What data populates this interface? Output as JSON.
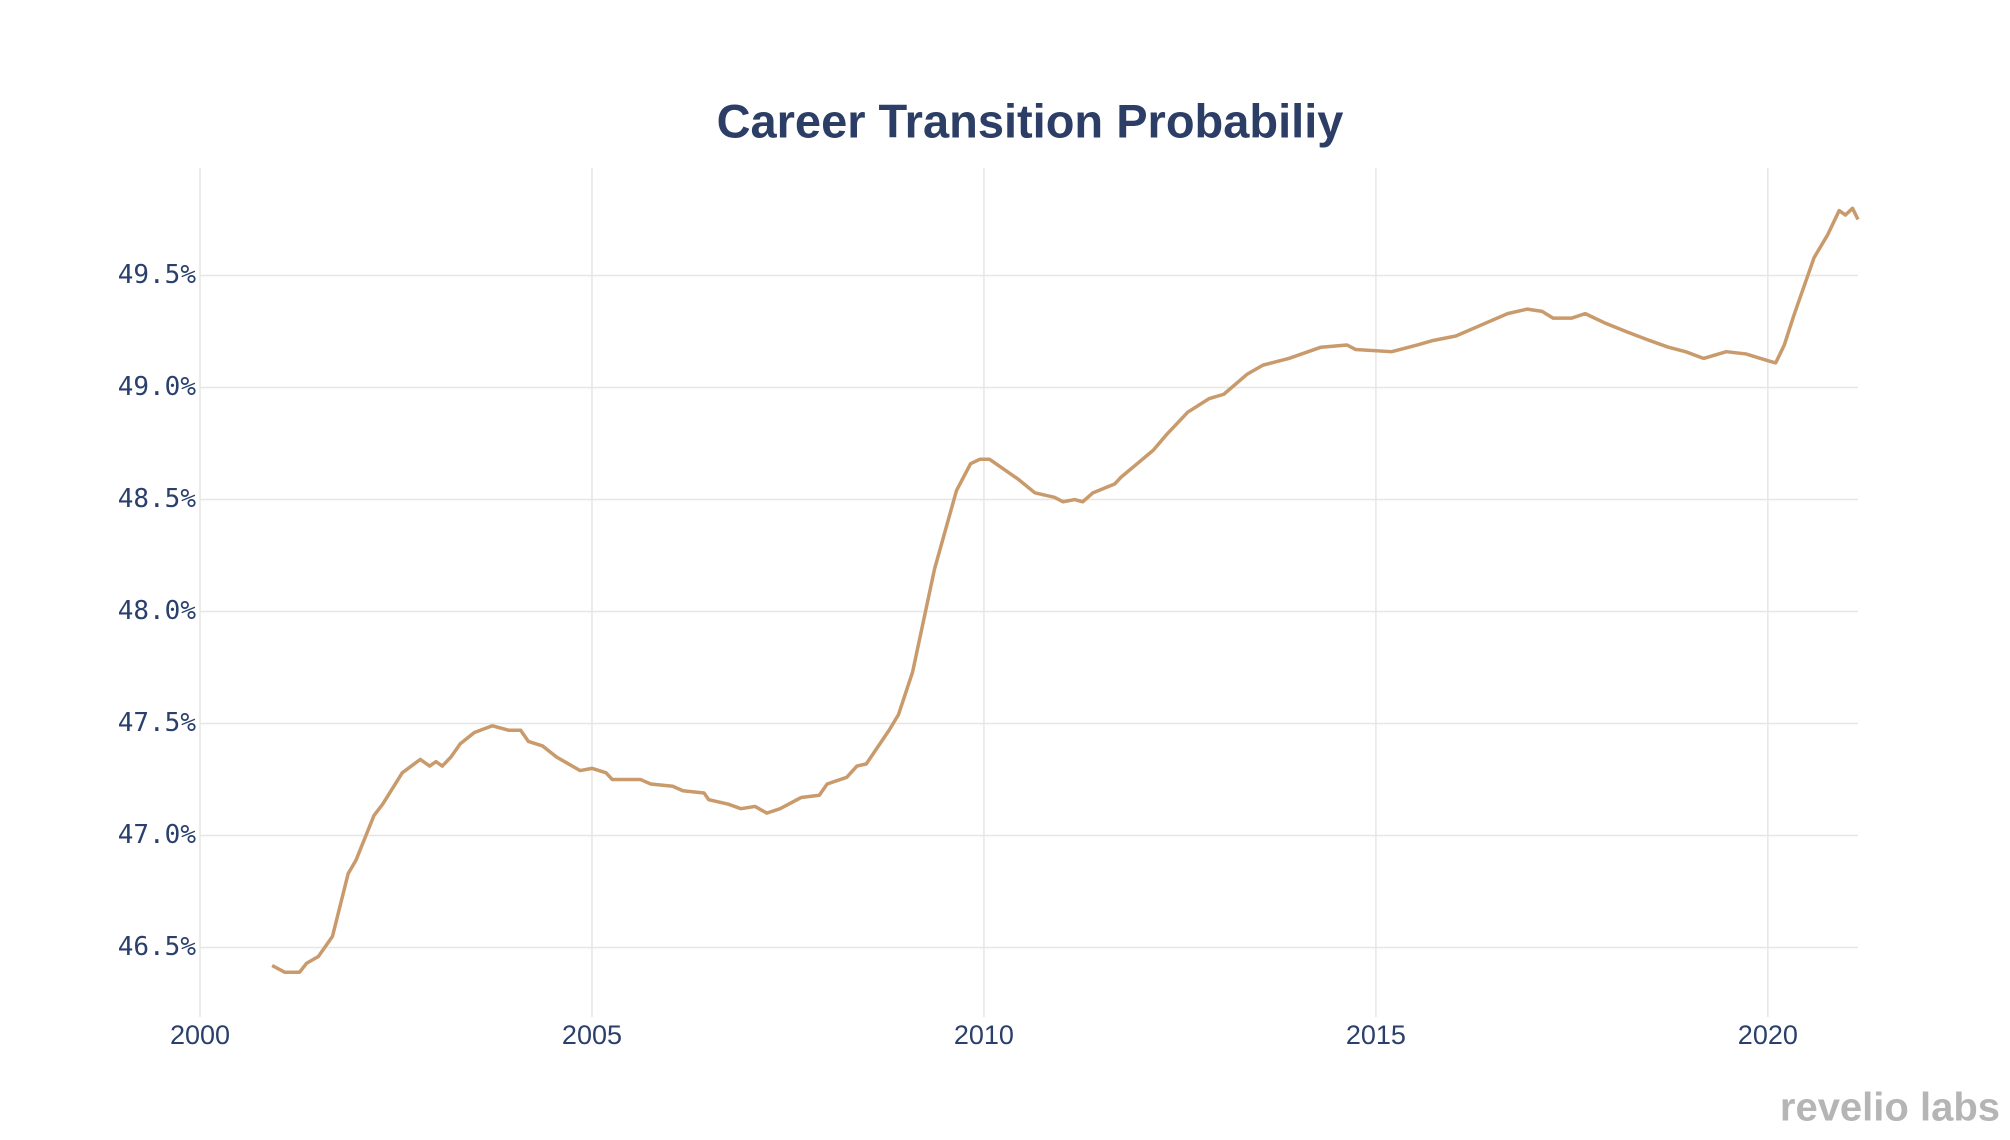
{
  "chart_data": {
    "type": "line",
    "title": "Career Transition Probabiliy",
    "logo": "revelio labs",
    "x": [
      2000.92,
      2001.08,
      2001.27,
      2001.36,
      2001.51,
      2001.69,
      2001.89,
      2001.99,
      2002.22,
      2002.33,
      2002.58,
      2002.81,
      2002.93,
      2003.01,
      2003.09,
      2003.2,
      2003.32,
      2003.5,
      2003.73,
      2003.94,
      2004.09,
      2004.19,
      2004.37,
      2004.55,
      2004.85,
      2005.0,
      2005.18,
      2005.26,
      2005.62,
      2005.75,
      2006.03,
      2006.16,
      2006.43,
      2006.49,
      2006.74,
      2006.9,
      2007.08,
      2007.23,
      2007.4,
      2007.67,
      2007.9,
      2008.0,
      2008.25,
      2008.38,
      2008.5,
      2008.79,
      2008.91,
      2009.09,
      2009.37,
      2009.65,
      2009.83,
      2009.95,
      2010.07,
      2010.44,
      2010.65,
      2010.9,
      2011.01,
      2011.16,
      2011.26,
      2011.39,
      2011.67,
      2011.75,
      2012.16,
      2012.33,
      2012.6,
      2012.87,
      2013.06,
      2013.36,
      2013.56,
      2013.89,
      2014.3,
      2014.63,
      2014.74,
      2015.2,
      2015.53,
      2015.73,
      2016.02,
      2016.35,
      2016.68,
      2016.93,
      2017.12,
      2017.26,
      2017.5,
      2017.67,
      2017.91,
      2018.19,
      2018.49,
      2018.73,
      2018.95,
      2019.18,
      2019.47,
      2019.72,
      2020.0,
      2020.1,
      2020.21,
      2020.33,
      2020.59,
      2020.76,
      2020.91,
      2020.99,
      2021.08,
      2021.15
    ],
    "series": [
      {
        "name": "Career Transition Probability",
        "color": "#c99a6b",
        "values": [
          46.42,
          46.39,
          46.39,
          46.43,
          46.46,
          46.55,
          46.83,
          46.89,
          47.09,
          47.14,
          47.28,
          47.34,
          47.31,
          47.33,
          47.31,
          47.35,
          47.41,
          47.46,
          47.49,
          47.47,
          47.47,
          47.42,
          47.4,
          47.35,
          47.29,
          47.3,
          47.28,
          47.25,
          47.25,
          47.23,
          47.22,
          47.2,
          47.19,
          47.16,
          47.14,
          47.12,
          47.13,
          47.1,
          47.12,
          47.17,
          47.18,
          47.23,
          47.26,
          47.31,
          47.32,
          47.47,
          47.54,
          47.73,
          48.19,
          48.54,
          48.66,
          48.68,
          48.68,
          48.59,
          48.53,
          48.51,
          48.49,
          48.5,
          48.49,
          48.53,
          48.57,
          48.6,
          48.72,
          48.79,
          48.89,
          48.95,
          48.97,
          49.06,
          49.1,
          49.13,
          49.18,
          49.19,
          49.17,
          49.16,
          49.19,
          49.21,
          49.23,
          49.28,
          49.33,
          49.35,
          49.34,
          49.31,
          49.31,
          49.33,
          49.29,
          49.25,
          49.21,
          49.18,
          49.16,
          49.13,
          49.16,
          49.15,
          49.12,
          49.11,
          49.19,
          49.32,
          49.58,
          49.68,
          49.79,
          49.77,
          49.8,
          49.75
        ]
      }
    ],
    "xlim": [
      2000,
      2021.15
    ],
    "xticks": [
      2000,
      2005,
      2010,
      2015,
      2020
    ],
    "ylim": [
      46.19,
      49.98
    ],
    "yticks": [
      {
        "value": 46.5,
        "label": "46.5%"
      },
      {
        "value": 47.0,
        "label": "47.0%"
      },
      {
        "value": 47.5,
        "label": "47.5%"
      },
      {
        "value": 48.0,
        "label": "48.0%"
      },
      {
        "value": 48.5,
        "label": "48.5%"
      },
      {
        "value": 49.0,
        "label": "49.0%"
      },
      {
        "value": 49.5,
        "label": "49.5%"
      }
    ],
    "grid": true
  }
}
